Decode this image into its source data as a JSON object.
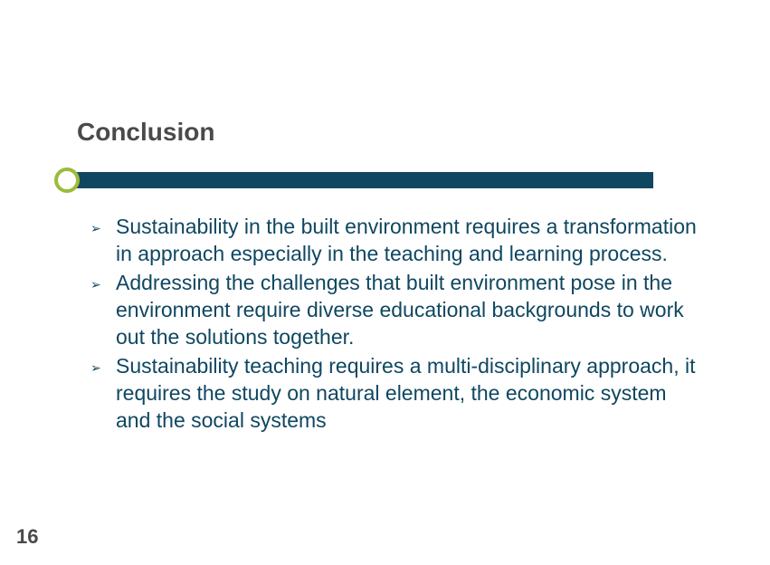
{
  "slide": {
    "title": "Conclusion",
    "title_color": "#4a4a4a",
    "title_fontsize": 28,
    "bar": {
      "circle_border_color": "#9cbb3b",
      "rect_color": "#0f4761"
    },
    "bullets": {
      "marker": "➢",
      "marker_color": "#0f4761",
      "text_color": "#0f4761",
      "text_fontsize": 23,
      "items": [
        "Sustainability in the built environment requires a transformation in approach especially in the teaching and learning process.",
        "Addressing the challenges that built environment pose in the environment require diverse educational backgrounds to work out the solutions together.",
        " Sustainability teaching requires a multi-disciplinary approach, it requires the study on natural element, the economic system and the social systems"
      ]
    },
    "page_number": "16",
    "page_number_color": "#4a4a4a",
    "background_color": "#ffffff"
  }
}
